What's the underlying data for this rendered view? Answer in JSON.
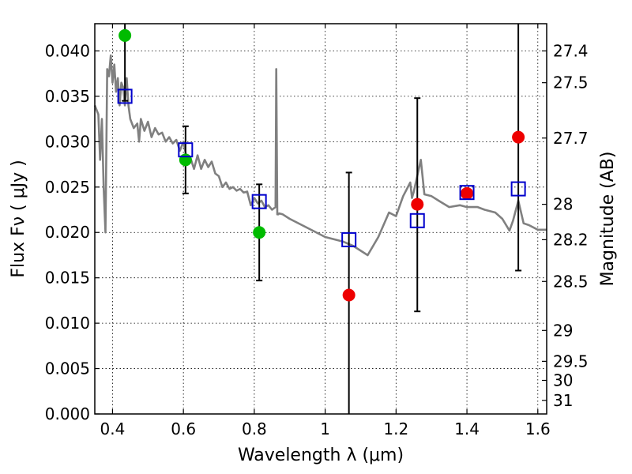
{
  "chart_data": {
    "type": "scatter",
    "xlabel": "Wavelength  λ (μm)",
    "ylabel": "Flux  Fν  ( μJy )",
    "y2label": "Magnitude (AB)",
    "xlim": [
      0.35,
      1.625
    ],
    "ylim": [
      0.0,
      0.043
    ],
    "grid": true,
    "x_ticks": [
      0.4,
      0.6,
      0.8,
      1.0,
      1.2,
      1.4,
      1.6
    ],
    "x_tick_labels": [
      "0.4",
      "0.6",
      "0.8",
      "1",
      "1.2",
      "1.4",
      "1.6"
    ],
    "y_ticks": [
      0.0,
      0.005,
      0.01,
      0.015,
      0.02,
      0.025,
      0.03,
      0.035,
      0.04
    ],
    "y_tick_labels": [
      "0.000",
      "0.005",
      "0.010",
      "0.015",
      "0.020",
      "0.025",
      "0.030",
      "0.035",
      "0.040"
    ],
    "mag_ticks": [
      {
        "label": "27.4",
        "flux": 0.04
      },
      {
        "label": "27.5",
        "flux": 0.0365
      },
      {
        "label": "27.7",
        "flux": 0.0304
      },
      {
        "label": "28",
        "flux": 0.0231
      },
      {
        "label": "28.2",
        "flux": 0.0192
      },
      {
        "label": "28.5",
        "flux": 0.0146
      },
      {
        "label": "29",
        "flux": 0.0092
      },
      {
        "label": "29.5",
        "flux": 0.0058
      },
      {
        "label": "30",
        "flux": 0.0037
      },
      {
        "label": "31",
        "flux": 0.0015
      }
    ],
    "sed_model": {
      "color": "#808080",
      "x": [
        0.35,
        0.36,
        0.365,
        0.37,
        0.375,
        0.38,
        0.385,
        0.39,
        0.395,
        0.4,
        0.405,
        0.41,
        0.415,
        0.42,
        0.425,
        0.43,
        0.435,
        0.44,
        0.445,
        0.45,
        0.46,
        0.47,
        0.475,
        0.48,
        0.49,
        0.5,
        0.51,
        0.52,
        0.53,
        0.54,
        0.55,
        0.56,
        0.57,
        0.58,
        0.59,
        0.6,
        0.61,
        0.62,
        0.63,
        0.64,
        0.65,
        0.66,
        0.67,
        0.68,
        0.69,
        0.7,
        0.71,
        0.72,
        0.73,
        0.74,
        0.75,
        0.76,
        0.77,
        0.78,
        0.79,
        0.8,
        0.81,
        0.82,
        0.83,
        0.84,
        0.85,
        0.86,
        0.862,
        0.865,
        0.868,
        0.87,
        0.88,
        0.9,
        0.95,
        1.0,
        1.05,
        1.08,
        1.12,
        1.15,
        1.18,
        1.2,
        1.22,
        1.24,
        1.245,
        1.25,
        1.27,
        1.28,
        1.3,
        1.32,
        1.35,
        1.38,
        1.4,
        1.43,
        1.45,
        1.48,
        1.5,
        1.52,
        1.53,
        1.545,
        1.56,
        1.575,
        1.6,
        1.625
      ],
      "y": [
        0.034,
        0.033,
        0.028,
        0.0325,
        0.025,
        0.02,
        0.038,
        0.0372,
        0.0395,
        0.0365,
        0.0385,
        0.0355,
        0.037,
        0.034,
        0.0365,
        0.036,
        0.034,
        0.037,
        0.034,
        0.0325,
        0.0315,
        0.032,
        0.03,
        0.0325,
        0.0312,
        0.0322,
        0.0305,
        0.0315,
        0.0308,
        0.031,
        0.03,
        0.0305,
        0.0298,
        0.0302,
        0.029,
        0.03,
        0.028,
        0.0282,
        0.027,
        0.0285,
        0.027,
        0.028,
        0.0272,
        0.0278,
        0.0265,
        0.0262,
        0.025,
        0.0255,
        0.0248,
        0.025,
        0.0246,
        0.0248,
        0.0244,
        0.0245,
        0.023,
        0.0238,
        0.0232,
        0.0235,
        0.0228,
        0.023,
        0.0225,
        0.0228,
        0.038,
        0.022,
        0.022,
        0.0221,
        0.022,
        0.0215,
        0.0205,
        0.0195,
        0.019,
        0.0185,
        0.0175,
        0.0195,
        0.0222,
        0.0218,
        0.024,
        0.0255,
        0.0238,
        0.0245,
        0.028,
        0.0242,
        0.024,
        0.0235,
        0.0228,
        0.023,
        0.0228,
        0.0228,
        0.0225,
        0.0222,
        0.0215,
        0.0202,
        0.0213,
        0.0235,
        0.021,
        0.0208,
        0.0203,
        0.0203
      ]
    },
    "series": [
      {
        "marker": "circle",
        "color": "#00bb00",
        "points": [
          {
            "x": 0.435,
            "y": 0.0417
          },
          {
            "x": 0.606,
            "y": 0.028
          },
          {
            "x": 0.814,
            "y": 0.02
          }
        ]
      },
      {
        "marker": "circle",
        "color": "#ee0000",
        "points": [
          {
            "x": 1.067,
            "y": 0.0131
          },
          {
            "x": 1.26,
            "y": 0.0231
          },
          {
            "x": 1.4,
            "y": 0.0243
          },
          {
            "x": 1.545,
            "y": 0.0305
          }
        ]
      },
      {
        "marker": "open-square",
        "color": "#0000cc",
        "points": [
          {
            "x": 0.435,
            "y": 0.035
          },
          {
            "x": 0.606,
            "y": 0.0291
          },
          {
            "x": 0.814,
            "y": 0.0234
          },
          {
            "x": 1.067,
            "y": 0.0192
          },
          {
            "x": 1.26,
            "y": 0.0213
          },
          {
            "x": 1.4,
            "y": 0.0244
          },
          {
            "x": 1.545,
            "y": 0.0248
          }
        ]
      }
    ],
    "error_bars": [
      {
        "x": 0.435,
        "low": 0.0345,
        "high": 0.043
      },
      {
        "x": 0.606,
        "low": 0.0243,
        "high": 0.0317
      },
      {
        "x": 0.814,
        "low": 0.0147,
        "high": 0.0253
      },
      {
        "x": 1.067,
        "low": 0.0,
        "high": 0.0266
      },
      {
        "x": 1.26,
        "low": 0.0113,
        "high": 0.0348
      },
      {
        "x": 1.545,
        "low": 0.0158,
        "high": 0.043
      }
    ]
  }
}
